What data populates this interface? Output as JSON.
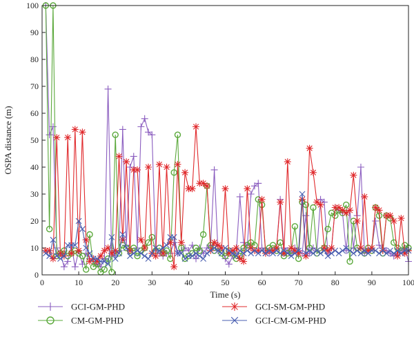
{
  "chart_data": {
    "type": "line",
    "xlabel": "Time (s)",
    "ylabel": "OSPA distance (m)",
    "xlim": [
      0,
      100
    ],
    "ylim": [
      0,
      100
    ],
    "xticks": [
      0,
      10,
      20,
      30,
      40,
      50,
      60,
      70,
      80,
      90,
      100
    ],
    "yticks": [
      0,
      10,
      20,
      30,
      40,
      50,
      60,
      70,
      80,
      90,
      100
    ],
    "grid": false,
    "legend_position": "bottom",
    "series": [
      {
        "name": "GCI-GM-PHD",
        "color": "#8a5cbf",
        "marker": "plus",
        "x": [
          1,
          2,
          3,
          4,
          5,
          6,
          7,
          8,
          9,
          10,
          11,
          12,
          13,
          14,
          15,
          16,
          17,
          18,
          19,
          20,
          21,
          22,
          23,
          24,
          25,
          26,
          27,
          28,
          29,
          30,
          31,
          32,
          33,
          34,
          35,
          36,
          37,
          38,
          39,
          40,
          41,
          42,
          43,
          44,
          45,
          46,
          47,
          48,
          49,
          50,
          51,
          52,
          53,
          54,
          55,
          56,
          57,
          58,
          59,
          60,
          61,
          62,
          63,
          64,
          65,
          66,
          67,
          68,
          69,
          70,
          71,
          72,
          73,
          74,
          75,
          76,
          77,
          78,
          79,
          80,
          81,
          82,
          83,
          84,
          85,
          86,
          87,
          88,
          89,
          90,
          91,
          92,
          93,
          94,
          95,
          96,
          97,
          98,
          99,
          100
        ],
        "values": [
          100,
          52,
          55,
          10,
          8,
          3,
          5,
          11,
          3,
          9,
          4,
          8,
          6,
          5,
          4,
          3,
          6,
          69,
          7,
          8,
          9,
          54,
          11,
          40,
          44,
          10,
          55,
          58,
          53,
          52,
          9,
          8,
          7,
          8,
          8,
          12,
          8,
          9,
          10,
          9,
          11,
          6,
          10,
          8,
          10,
          11,
          39,
          9,
          10,
          6,
          4,
          7,
          8,
          29,
          12,
          11,
          30,
          33,
          34,
          10,
          9,
          8,
          9,
          10,
          28,
          10,
          9,
          8,
          10,
          9,
          8,
          22,
          8,
          10,
          9,
          28,
          27,
          8,
          10,
          25,
          24,
          23,
          9,
          24,
          10,
          22,
          40,
          8,
          9,
          10,
          20,
          11,
          10,
          9,
          8,
          7,
          8,
          9,
          10,
          5
        ]
      },
      {
        "name": "CM-GM-PHD",
        "color": "#5aa83a",
        "marker": "circle",
        "x": [
          1,
          2,
          3,
          4,
          5,
          6,
          7,
          8,
          9,
          10,
          11,
          12,
          13,
          14,
          15,
          16,
          17,
          18,
          19,
          20,
          21,
          22,
          23,
          24,
          25,
          26,
          27,
          28,
          29,
          30,
          31,
          32,
          33,
          34,
          35,
          36,
          37,
          38,
          39,
          40,
          41,
          42,
          43,
          44,
          45,
          46,
          47,
          48,
          49,
          50,
          51,
          52,
          53,
          54,
          55,
          56,
          57,
          58,
          59,
          60,
          61,
          62,
          63,
          64,
          65,
          66,
          67,
          68,
          69,
          70,
          71,
          72,
          73,
          74,
          75,
          76,
          77,
          78,
          79,
          80,
          81,
          82,
          83,
          84,
          85,
          86,
          87,
          88,
          89,
          90,
          91,
          92,
          93,
          94,
          95,
          96,
          97,
          98,
          99,
          100
        ],
        "values": [
          100,
          17,
          100,
          7,
          8,
          9,
          7,
          8,
          9,
          8,
          7,
          2,
          15,
          3,
          4,
          1,
          2,
          6,
          1,
          52,
          8,
          11,
          10,
          9,
          10,
          7,
          9,
          10,
          12,
          14,
          9,
          10,
          8,
          9,
          6,
          38,
          52,
          10,
          6,
          7,
          8,
          10,
          9,
          15,
          33,
          11,
          9,
          10,
          8,
          7,
          9,
          8,
          6,
          7,
          10,
          11,
          12,
          11,
          28,
          26,
          9,
          10,
          11,
          9,
          12,
          7,
          8,
          9,
          18,
          6,
          27,
          26,
          10,
          25,
          8,
          9,
          10,
          17,
          23,
          22,
          24,
          23,
          26,
          5,
          20,
          10,
          9,
          8,
          10,
          9,
          25,
          22,
          8,
          22,
          21,
          12,
          10,
          9,
          11,
          10
        ]
      },
      {
        "name": "GCI-SM-GM-PHD",
        "color": "#e0282b",
        "marker": "star",
        "x": [
          1,
          2,
          3,
          4,
          5,
          6,
          7,
          8,
          9,
          10,
          11,
          12,
          13,
          14,
          15,
          16,
          17,
          18,
          19,
          20,
          21,
          22,
          23,
          24,
          25,
          26,
          27,
          28,
          29,
          30,
          31,
          32,
          33,
          34,
          35,
          36,
          37,
          38,
          39,
          40,
          41,
          42,
          43,
          44,
          45,
          46,
          47,
          48,
          49,
          50,
          51,
          52,
          53,
          54,
          55,
          56,
          57,
          58,
          59,
          60,
          61,
          62,
          63,
          64,
          65,
          66,
          67,
          68,
          69,
          70,
          71,
          72,
          73,
          74,
          75,
          76,
          77,
          78,
          79,
          80,
          81,
          82,
          83,
          84,
          85,
          86,
          87,
          88,
          89,
          90,
          91,
          92,
          93,
          94,
          95,
          96,
          97,
          98,
          99,
          100
        ],
        "values": [
          9,
          9,
          6,
          51,
          8,
          7,
          51,
          8,
          54,
          9,
          53,
          13,
          5,
          6,
          5,
          7,
          9,
          10,
          8,
          9,
          44,
          13,
          42,
          9,
          39,
          39,
          13,
          10,
          40,
          8,
          7,
          41,
          8,
          40,
          12,
          3,
          41,
          12,
          38,
          32,
          32,
          55,
          34,
          34,
          33,
          9,
          12,
          11,
          10,
          32,
          8,
          9,
          10,
          6,
          5,
          32,
          10,
          9,
          9,
          28,
          8,
          9,
          9,
          10,
          27,
          8,
          42,
          10,
          9,
          8,
          28,
          7,
          47,
          38,
          27,
          26,
          10,
          9,
          10,
          25,
          25,
          24,
          23,
          24,
          37,
          20,
          10,
          29,
          9,
          10,
          25,
          24,
          9,
          22,
          22,
          20,
          7,
          21,
          8,
          9
        ]
      },
      {
        "name": "GCI-CM-GM-PHD",
        "color": "#4a5fb0",
        "marker": "x",
        "x": [
          1,
          2,
          3,
          4,
          5,
          6,
          7,
          8,
          9,
          10,
          11,
          12,
          13,
          14,
          15,
          16,
          17,
          18,
          19,
          20,
          21,
          22,
          23,
          24,
          25,
          26,
          27,
          28,
          29,
          30,
          31,
          32,
          33,
          34,
          35,
          36,
          37,
          38,
          39,
          40,
          41,
          42,
          43,
          44,
          45,
          46,
          47,
          48,
          49,
          50,
          51,
          52,
          53,
          54,
          55,
          56,
          57,
          58,
          59,
          60,
          61,
          62,
          63,
          64,
          65,
          66,
          67,
          68,
          69,
          70,
          71,
          72,
          73,
          74,
          75,
          76,
          77,
          78,
          79,
          80,
          81,
          82,
          83,
          84,
          85,
          86,
          87,
          88,
          89,
          90,
          91,
          92,
          93,
          94,
          95,
          96,
          97,
          98,
          99,
          100
        ],
        "values": [
          8,
          7,
          13,
          7,
          6,
          7,
          11,
          11,
          11,
          20,
          17,
          10,
          8,
          6,
          6,
          5,
          5,
          4,
          14,
          6,
          8,
          15,
          10,
          7,
          8,
          9,
          8,
          7,
          6,
          8,
          10,
          9,
          10,
          11,
          14,
          14,
          8,
          8,
          6,
          7,
          7,
          8,
          7,
          6,
          8,
          9,
          10,
          9,
          8,
          10,
          9,
          8,
          7,
          9,
          8,
          9,
          8,
          9,
          8,
          9,
          8,
          9,
          8,
          9,
          8,
          9,
          8,
          7,
          8,
          9,
          30,
          8,
          9,
          8,
          9,
          8,
          9,
          7,
          8,
          9,
          8,
          9,
          10,
          9,
          8,
          9,
          8,
          9,
          8,
          9,
          9,
          8,
          9,
          8,
          9,
          8,
          9,
          8,
          9,
          9
        ]
      }
    ]
  }
}
